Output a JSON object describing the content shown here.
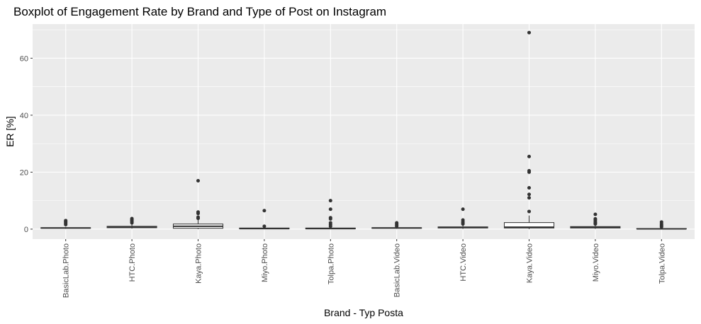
{
  "chart_data": {
    "type": "boxplot",
    "title": "Boxplot of Engagement Rate by Brand and Type of Post on Instagram",
    "xlabel": "Brand - Typ Posta",
    "ylabel": "ER [%]",
    "ylim": [
      -3.5,
      72
    ],
    "yticks": [
      0,
      20,
      40,
      60
    ],
    "grid": true,
    "categories": [
      "BasicLab.Photo",
      "HTC.Photo",
      "Kaya.Photo",
      "Miyo.Photo",
      "Tolpa.Photo",
      "BasicLab.Video",
      "HTC.Video",
      "Kaya.Video",
      "Miyo.Video",
      "Tolpa.Video"
    ],
    "boxes": [
      {
        "category": "BasicLab.Photo",
        "lower": 0.1,
        "q1": 0.3,
        "median": 0.4,
        "q3": 0.5,
        "upper": 0.8,
        "outliers": [
          1.6,
          2.0,
          2.4,
          2.7,
          3.0
        ]
      },
      {
        "category": "HTC.Photo",
        "lower": 0.2,
        "q1": 0.5,
        "median": 0.7,
        "q3": 1.0,
        "upper": 1.6,
        "outliers": [
          2.2,
          2.6,
          3.0,
          3.3,
          3.7
        ]
      },
      {
        "category": "Kaya.Photo",
        "lower": 0.0,
        "q1": 0.3,
        "median": 1.0,
        "q3": 1.8,
        "upper": 3.3,
        "outliers": [
          3.8,
          4.2,
          5.5,
          6.0,
          17.0
        ]
      },
      {
        "category": "Miyo.Photo",
        "lower": 0.0,
        "q1": 0.1,
        "median": 0.2,
        "q3": 0.4,
        "upper": 0.7,
        "outliers": [
          1.0,
          6.5
        ]
      },
      {
        "category": "Tolpa.Photo",
        "lower": 0.0,
        "q1": 0.1,
        "median": 0.2,
        "q3": 0.4,
        "upper": 0.8,
        "outliers": [
          1.0,
          1.6,
          2.2,
          3.6,
          4.0,
          7.0,
          10.0
        ]
      },
      {
        "category": "BasicLab.Video",
        "lower": 0.1,
        "q1": 0.3,
        "median": 0.4,
        "q3": 0.5,
        "upper": 0.8,
        "outliers": [
          1.0,
          1.4,
          1.8,
          2.2
        ]
      },
      {
        "category": "HTC.Video",
        "lower": 0.1,
        "q1": 0.4,
        "median": 0.6,
        "q3": 0.8,
        "upper": 1.3,
        "outliers": [
          1.8,
          2.2,
          2.6,
          3.2,
          7.0
        ]
      },
      {
        "category": "Kaya.Video",
        "lower": 0.0,
        "q1": 0.4,
        "median": 0.7,
        "q3": 2.3,
        "upper": 4.8,
        "outliers": [
          6.2,
          11.0,
          12.2,
          14.5,
          20.0,
          20.5,
          25.5,
          69.0
        ]
      },
      {
        "category": "Miyo.Video",
        "lower": 0.1,
        "q1": 0.4,
        "median": 0.6,
        "q3": 0.9,
        "upper": 1.4,
        "outliers": [
          1.8,
          2.2,
          2.6,
          3.2,
          3.6,
          5.2
        ]
      },
      {
        "category": "Tolpa.Video",
        "lower": 0.0,
        "q1": 0.1,
        "median": 0.1,
        "q3": 0.2,
        "upper": 0.4,
        "outliers": [
          0.8,
          1.3,
          1.8,
          2.5
        ]
      }
    ],
    "colors": {
      "panel": "#ebebeb",
      "grid_major": "#ffffff",
      "box_fill": "#ffffff",
      "box_line": "#333333"
    }
  }
}
